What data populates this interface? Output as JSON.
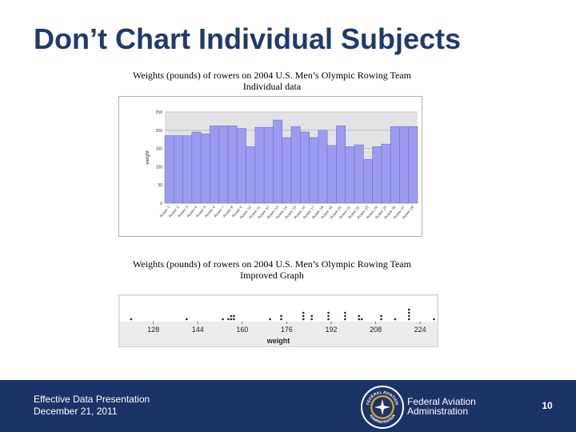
{
  "slide": {
    "title": "Don’t Chart Individual Subjects"
  },
  "footer": {
    "presentation": "Effective Data Presentation",
    "date": "December 21, 2011",
    "org_line1": "Federal Aviation",
    "org_line2": "Administration",
    "page": "10",
    "seal_text_top": "FEDERAL AVIATION",
    "seal_text_bottom": "ADMINISTRATION"
  },
  "chart_data": [
    {
      "type": "bar",
      "title": "Weights (pounds) of rowers on 2004 U.S. Men’s Olympic Rowing Team",
      "subtitle": "Individual data",
      "ylabel": "weight",
      "xlabel": "",
      "ylim": [
        0,
        250
      ],
      "yticks": [
        0,
        50,
        100,
        150,
        200,
        250
      ],
      "grid": true,
      "bar_color": "#9b9cf1",
      "categories": [
        "Rower 1",
        "Rower 2",
        "Rower 3",
        "Rower 4",
        "Rower 5",
        "Rower 6",
        "Rower 7",
        "Rower 8",
        "Rower 9",
        "Rower 10",
        "Rower 11",
        "Rower 12",
        "Rower 13",
        "Rower 14",
        "Rower 15",
        "Rower 16",
        "Rower 17",
        "Rower 18",
        "Rower 19",
        "Rower 20",
        "Rower 21",
        "Rower 22",
        "Rower 23",
        "Rower 24",
        "Rower 25",
        "Rower 26",
        "Rower 27",
        "Rower 28"
      ],
      "values": [
        185,
        185,
        185,
        195,
        190,
        212,
        212,
        212,
        205,
        155,
        208,
        208,
        228,
        180,
        210,
        195,
        180,
        200,
        158,
        212,
        155,
        160,
        120,
        155,
        162,
        210,
        210,
        210
      ]
    },
    {
      "type": "scatter",
      "subtype": "dot plot",
      "title": "Weights (pounds) of rowers on 2004 U.S. Men’s Olympic Rowing Team",
      "subtitle": "Improved Graph",
      "xlabel": "weight",
      "ylabel": "",
      "xlim": [
        116,
        230
      ],
      "xticks": [
        128,
        144,
        160,
        176,
        192,
        208,
        224
      ],
      "grid": false,
      "x": [
        120,
        140,
        153,
        155,
        156,
        156,
        157,
        157,
        170,
        174,
        174,
        182,
        182,
        182,
        185,
        185,
        191,
        191,
        191,
        197,
        197,
        197,
        202,
        202,
        203,
        210,
        210,
        215,
        220,
        220,
        220,
        220,
        229
      ],
      "y": [
        1,
        1,
        1,
        1,
        1,
        2,
        1,
        2,
        1,
        1,
        2,
        1,
        2,
        3,
        1,
        2,
        1,
        2,
        3,
        1,
        2,
        3,
        1,
        2,
        1,
        1,
        2,
        1,
        1,
        2,
        3,
        4,
        1
      ]
    }
  ]
}
